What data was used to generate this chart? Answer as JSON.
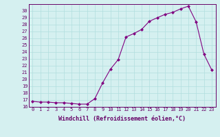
{
  "x": [
    0,
    1,
    2,
    3,
    4,
    5,
    6,
    7,
    8,
    9,
    10,
    11,
    12,
    13,
    14,
    15,
    16,
    17,
    18,
    19,
    20,
    21,
    22,
    23
  ],
  "y": [
    16.8,
    16.7,
    16.7,
    16.6,
    16.6,
    16.5,
    16.4,
    16.4,
    17.2,
    19.5,
    21.5,
    22.9,
    26.2,
    26.7,
    27.3,
    28.5,
    29.0,
    29.5,
    29.8,
    30.3,
    30.7,
    28.4,
    23.7,
    21.4
  ],
  "line_color": "#800080",
  "marker": "D",
  "marker_size": 2,
  "bg_color": "#d5f0f0",
  "grid_color": "#b0dede",
  "xlabel": "Windchill (Refroidissement éolien,°C)",
  "ylim": [
    16,
    31
  ],
  "yticks": [
    16,
    17,
    18,
    19,
    20,
    21,
    22,
    23,
    24,
    25,
    26,
    27,
    28,
    29,
    30
  ],
  "xticks": [
    0,
    1,
    2,
    3,
    4,
    5,
    6,
    7,
    8,
    9,
    10,
    11,
    12,
    13,
    14,
    15,
    16,
    17,
    18,
    19,
    20,
    21,
    22,
    23
  ],
  "tick_fontsize": 5,
  "xlabel_fontsize": 6,
  "tick_color": "#660066",
  "spine_color": "#660066"
}
